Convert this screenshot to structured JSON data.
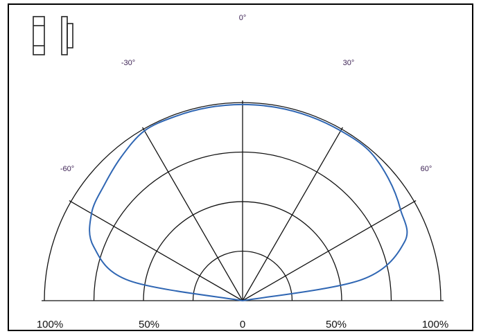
{
  "chart_data": {
    "type": "line",
    "subtype": "polar-semicircle",
    "title": "",
    "radial_axis": {
      "ticks": [
        25,
        50,
        75,
        100
      ],
      "unit": "%",
      "tick_labels": [
        "100%",
        "50%",
        "0",
        "50%",
        "100%"
      ]
    },
    "angular_axis": {
      "range_deg": [
        -90,
        90
      ],
      "spokes_deg": [
        -60,
        -30,
        0,
        30,
        60
      ],
      "tick_labels": [
        "-60°",
        "-30°",
        "0°",
        "30°",
        "60°"
      ]
    },
    "grid": true,
    "legend": "none",
    "series": [
      {
        "color": "#2f66b3",
        "angle_deg": [
          -90,
          -80,
          -70,
          -60,
          -50,
          -40,
          -30,
          -20,
          -10,
          0,
          10,
          20,
          30,
          40,
          50,
          60,
          70,
          80,
          90
        ],
        "intensity_pct": [
          0,
          58,
          80,
          88,
          91,
          95,
          99,
          99,
          99,
          99,
          99,
          99,
          99,
          99,
          96,
          92,
          87,
          61,
          0
        ]
      }
    ]
  },
  "header_icons": [
    {
      "name": "beam-front-view-icon"
    },
    {
      "name": "beam-side-view-icon"
    }
  ],
  "colors": {
    "curve": "#2f66b3",
    "grid": "#111111",
    "angle_label": "#3a1f52",
    "frame": "#000000"
  }
}
